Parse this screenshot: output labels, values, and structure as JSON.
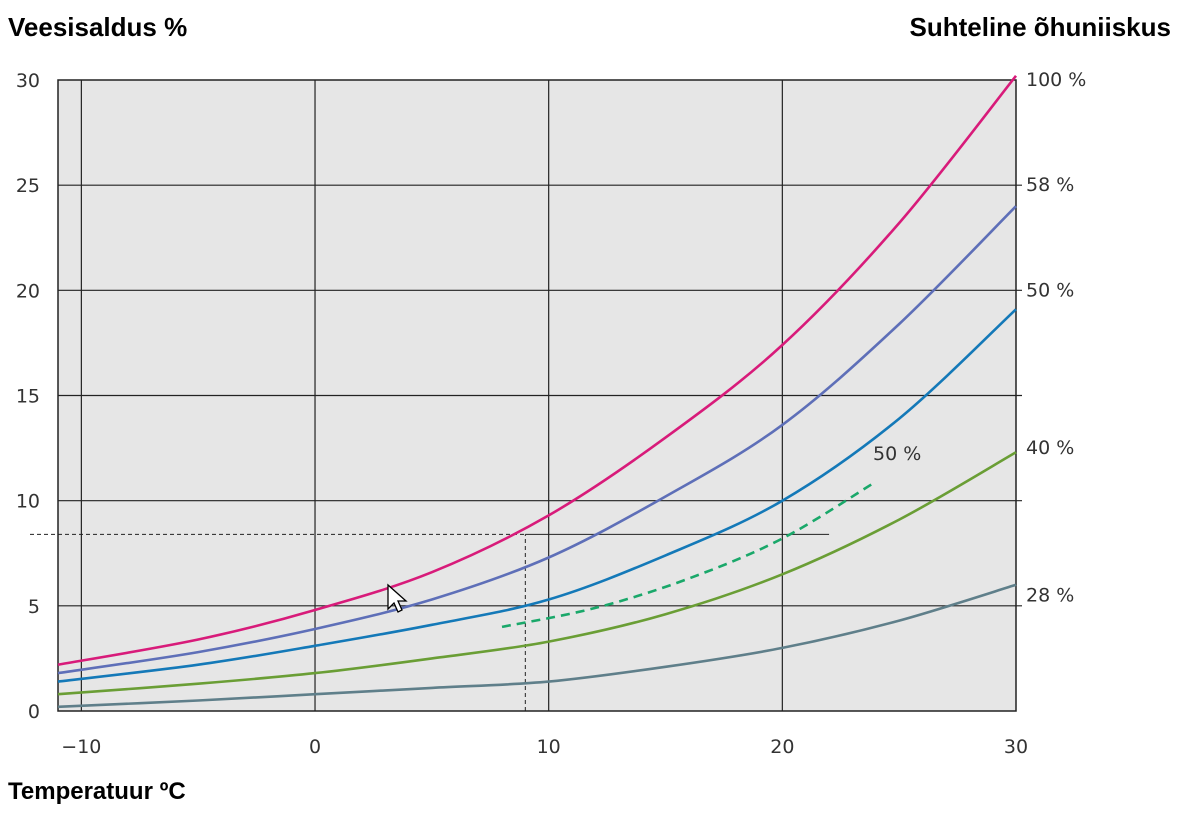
{
  "chart_data": {
    "type": "line",
    "title": "",
    "ylabel": "Veesisaldus %",
    "ylabel_right": "Suhteline õhuniiskus",
    "xlabel": "Temperatuur ºC",
    "xlim": [
      -11,
      30
    ],
    "ylim": [
      0,
      30
    ],
    "xticks": [
      -10,
      0,
      10,
      20,
      30
    ],
    "yticks": [
      0,
      5,
      10,
      15,
      20,
      25,
      30
    ],
    "right_labels": [
      {
        "text": "100 %",
        "y": 30
      },
      {
        "text": "58 %",
        "y": 25
      },
      {
        "text": "50 %",
        "y": 20
      },
      {
        "text": "40 %",
        "y": 12.5
      },
      {
        "text": "28 %",
        "y": 5.5
      }
    ],
    "background": "#e6e6e6",
    "grid": true,
    "series": [
      {
        "name": "100 %",
        "color": "#d81b7a",
        "dashed": false,
        "x": [
          -11,
          -5,
          0,
          5,
          10,
          15,
          20,
          25,
          30
        ],
        "y": [
          2.2,
          3.4,
          4.8,
          6.6,
          9.3,
          13.0,
          17.4,
          23.2,
          30.2
        ]
      },
      {
        "name": "58 %",
        "color": "#5e6fb8",
        "dashed": false,
        "x": [
          -11,
          -5,
          0,
          5,
          10,
          15,
          20,
          25,
          30
        ],
        "y": [
          1.8,
          2.8,
          3.9,
          5.3,
          7.3,
          10.2,
          13.6,
          18.4,
          24.0
        ]
      },
      {
        "name": "50 %",
        "color": "#1479b8",
        "dashed": false,
        "x": [
          -11,
          -5,
          0,
          5,
          10,
          15,
          20,
          25,
          30
        ],
        "y": [
          1.4,
          2.2,
          3.1,
          4.1,
          5.3,
          7.4,
          10.0,
          13.9,
          19.1
        ]
      },
      {
        "name": "40 %",
        "color": "#6a9e35",
        "dashed": false,
        "x": [
          -11,
          -5,
          0,
          5,
          10,
          15,
          20,
          25,
          30
        ],
        "y": [
          0.8,
          1.3,
          1.8,
          2.5,
          3.3,
          4.6,
          6.5,
          9.1,
          12.3
        ]
      },
      {
        "name": "28 %",
        "color": "#5f7f8a",
        "dashed": false,
        "x": [
          -11,
          -5,
          0,
          5,
          10,
          15,
          20,
          25,
          30
        ],
        "y": [
          0.2,
          0.5,
          0.8,
          1.1,
          1.4,
          2.1,
          3.0,
          4.3,
          6.0
        ]
      },
      {
        "name": "50 %",
        "color": "#1aa86a",
        "dashed": true,
        "x": [
          8,
          12,
          16,
          20,
          24
        ],
        "y": [
          4.0,
          4.9,
          6.3,
          8.2,
          10.9
        ]
      }
    ],
    "annotations": [
      {
        "text": "50 %",
        "x": 27,
        "y": 11.8
      }
    ],
    "reference_lines": [
      {
        "type": "horizontal",
        "y": 8.4,
        "x_from": -11,
        "x_to": 9,
        "dashed": true
      },
      {
        "type": "horizontal",
        "y": 8.4,
        "x_from": 9,
        "x_to": 22,
        "dashed": false
      },
      {
        "type": "vertical",
        "x": 9,
        "y_from": 0,
        "y_to": 8.4,
        "dashed": true
      }
    ]
  }
}
